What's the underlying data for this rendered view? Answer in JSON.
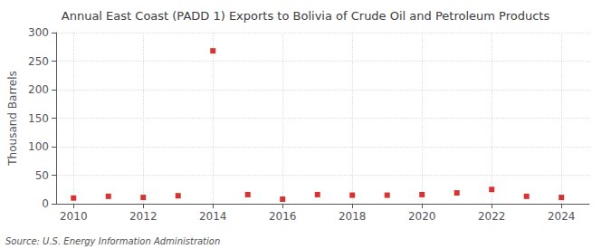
{
  "chart_data": {
    "type": "scatter",
    "title": "Annual East Coast (PADD 1) Exports to Bolivia of Crude Oil and Petroleum Products",
    "ylabel": "Thousand Barrels",
    "annotations": [
      "Source: U.S. Energy Information Administration"
    ],
    "x": [
      2010,
      2011,
      2012,
      2013,
      2014,
      2015,
      2016,
      2017,
      2018,
      2019,
      2020,
      2021,
      2022,
      2023,
      2024
    ],
    "values": [
      10,
      13,
      11,
      14,
      268,
      16,
      8,
      16,
      15,
      15,
      16,
      19,
      25,
      13,
      11
    ],
    "color": "#cc0000",
    "marker": "square",
    "xlim": [
      2009.5,
      2024.8
    ],
    "xticks": [
      2010,
      2012,
      2014,
      2016,
      2018,
      2020,
      2022,
      2024
    ],
    "ylim": [
      0,
      300
    ],
    "yticks": [
      0,
      50,
      100,
      150,
      200,
      250,
      300
    ],
    "grid": true
  }
}
